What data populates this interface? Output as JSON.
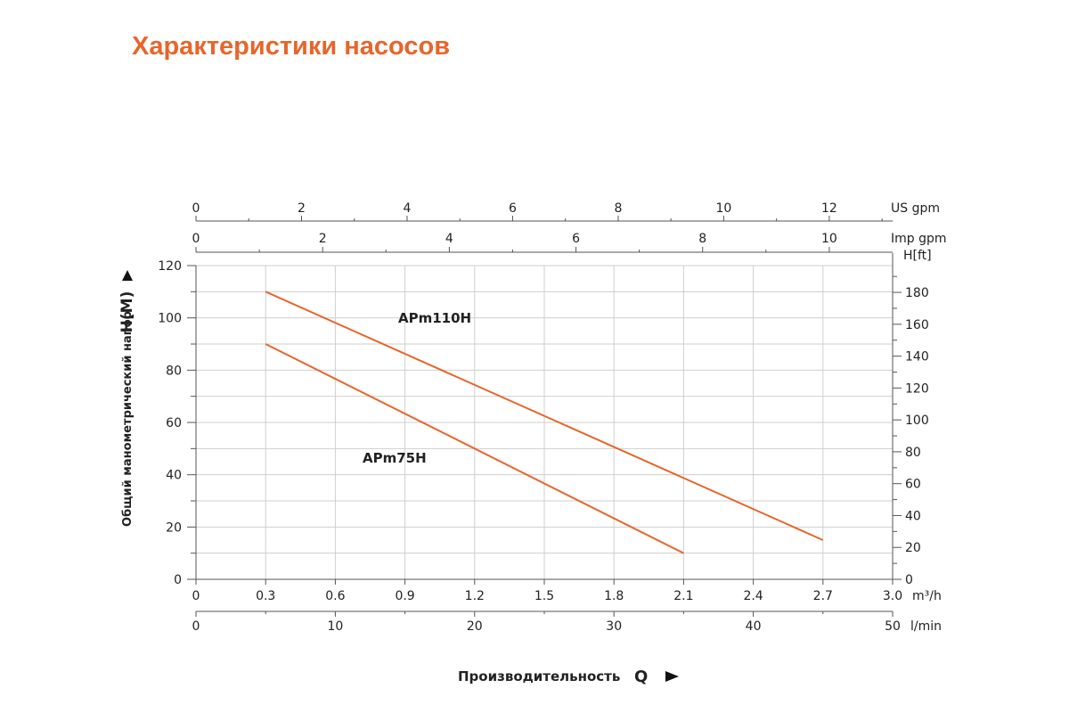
{
  "page": {
    "title": "Характеристики насосов"
  },
  "chart_data": {
    "type": "line",
    "ylabel": "Общий манометрический напор",
    "ylabel_symbol": "H(M)",
    "xlabel": "Производительность",
    "xlabel_symbol": "Q",
    "x_unit": "m³/h",
    "xlim": [
      0,
      3.0
    ],
    "ylim": [
      0,
      120
    ],
    "x_ticks": [
      0,
      0.3,
      0.6,
      0.9,
      1.2,
      1.5,
      1.8,
      2.1,
      2.4,
      2.7,
      3.0
    ],
    "x_tick_labels": [
      "0",
      "0.3",
      "0.6",
      "0.9",
      "1.2",
      "1.5",
      "1.8",
      "2.1",
      "2.4",
      "2.7",
      "3.0"
    ],
    "y_ticks": [
      0,
      20,
      40,
      60,
      80,
      100,
      120
    ],
    "y_tick_labels": [
      "0",
      "20",
      "40",
      "60",
      "80",
      "100",
      "120"
    ],
    "grid": true,
    "secondary_axes": {
      "us_gpm": {
        "unit": "US gpm",
        "ticks": [
          0,
          2,
          4,
          6,
          8,
          10,
          12
        ],
        "tick_labels": [
          "0",
          "2",
          "4",
          "6",
          "8",
          "10",
          "12"
        ],
        "max": 13.2
      },
      "imp_gpm": {
        "unit": "Imp gpm",
        "ticks": [
          0,
          2,
          4,
          6,
          8,
          10
        ],
        "tick_labels": [
          "0",
          "2",
          "4",
          "6",
          "8",
          "10"
        ],
        "max": 11
      },
      "l_min": {
        "unit": "l/min",
        "ticks": [
          0,
          10,
          20,
          30,
          40,
          50
        ],
        "tick_labels": [
          "0",
          "10",
          "20",
          "30",
          "40",
          "50"
        ],
        "max": 50
      },
      "h_ft": {
        "unit": "H[ft]",
        "ticks": [
          0,
          20,
          40,
          60,
          80,
          100,
          120,
          140,
          160,
          180
        ],
        "tick_labels": [
          "0",
          "20",
          "40",
          "60",
          "80",
          "100",
          "120",
          "140",
          "160",
          "180"
        ],
        "max": 196.8
      }
    },
    "series": [
      {
        "name": "APm110H",
        "color": "#e8652a",
        "x": [
          0.3,
          2.7
        ],
        "y": [
          110,
          15
        ]
      },
      {
        "name": "APm75H",
        "color": "#e8652a",
        "x": [
          0.3,
          2.1
        ],
        "y": [
          90,
          10
        ]
      }
    ]
  }
}
